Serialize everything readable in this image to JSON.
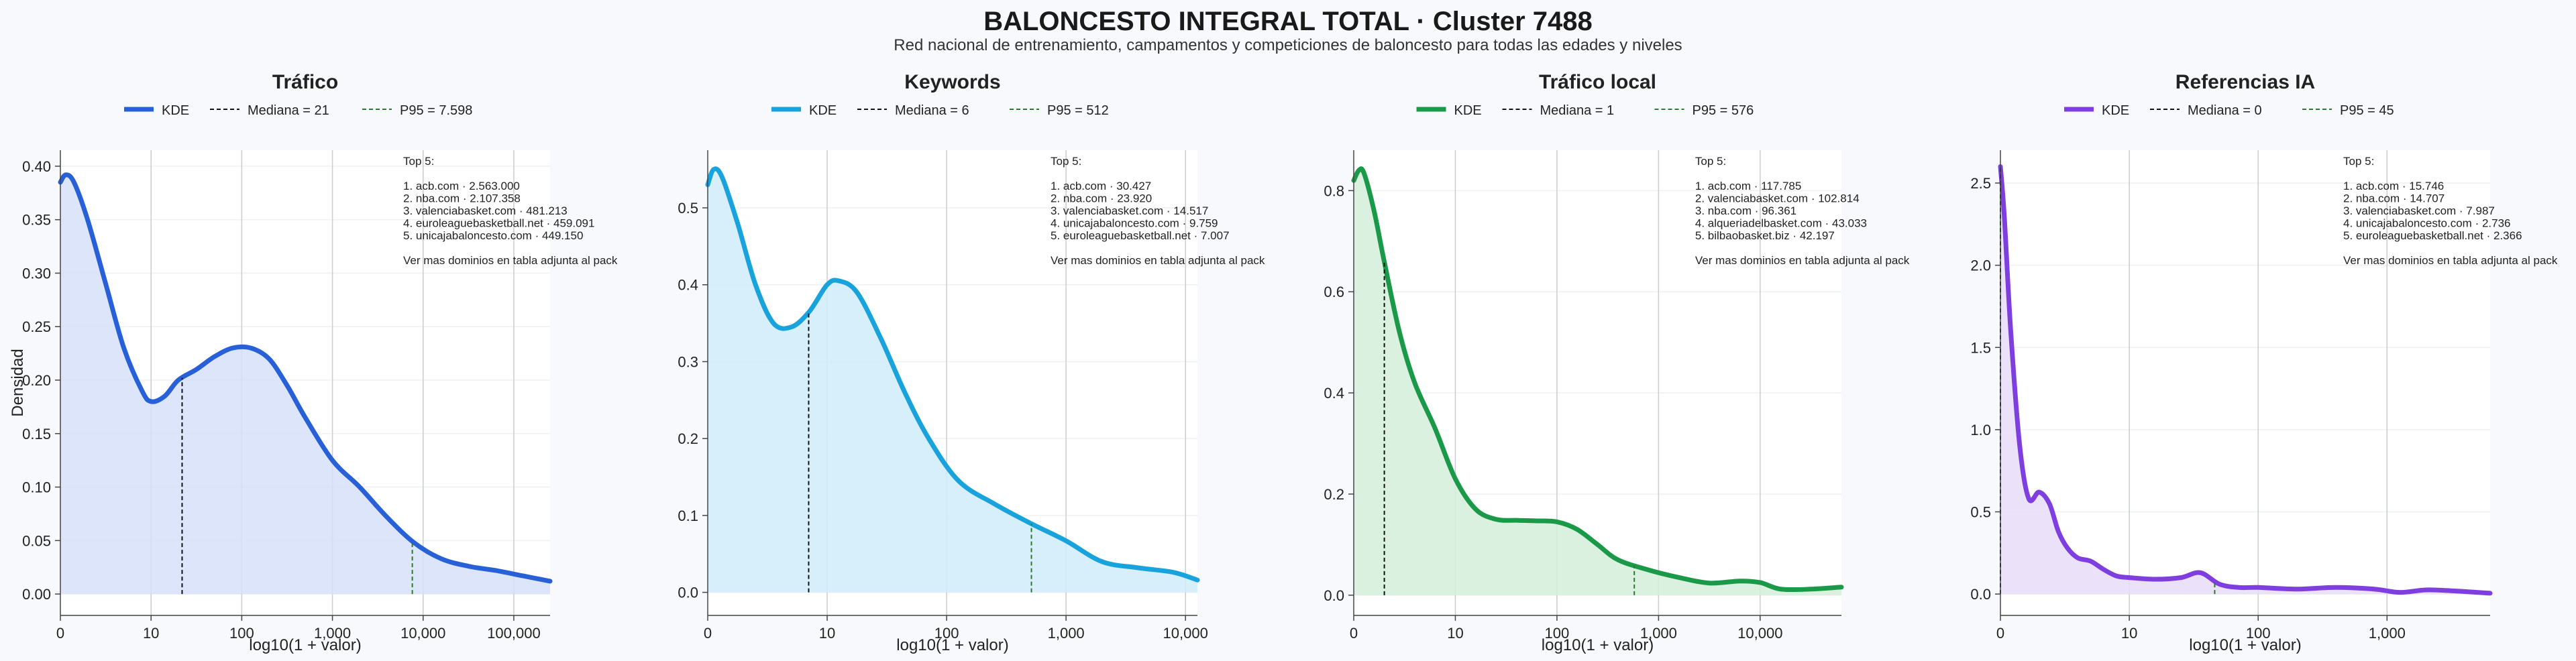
{
  "header": {
    "title": "BALONCESTO INTEGRAL TOTAL · Cluster 7488",
    "subtitle": "Red nacional de entrenamiento, campamentos y competiciones de baloncesto para todas las edades y niveles"
  },
  "chart_data": [
    {
      "type": "area",
      "title": "Tráfico",
      "color": "#2860d8",
      "fill": "#d6e0f8",
      "xlabel": "log10(1 + valor)",
      "ylabel": "Densidad",
      "xscale": "log10(1+x)",
      "xlim": [
        0,
        5.4
      ],
      "ylim": [
        -0.02,
        0.415
      ],
      "xticks": [
        0,
        1,
        2,
        3,
        4,
        5
      ],
      "xtick_labels": [
        "0",
        "10",
        "100",
        "1,000",
        "10,000",
        "100,000"
      ],
      "yticks": [
        0,
        0.05,
        0.1,
        0.15,
        0.2,
        0.25,
        0.3,
        0.35,
        0.4
      ],
      "ytick_labels": [
        "0.00",
        "0.05",
        "0.10",
        "0.15",
        "0.20",
        "0.25",
        "0.30",
        "0.35",
        "0.40"
      ],
      "kde": {
        "x": [
          0,
          0.06,
          0.15,
          0.3,
          0.5,
          0.7,
          0.9,
          1.0,
          1.15,
          1.3,
          1.5,
          1.7,
          1.9,
          2.1,
          2.3,
          2.5,
          2.7,
          3.0,
          3.3,
          3.6,
          3.9,
          4.2,
          4.5,
          4.8,
          5.1,
          5.4
        ],
        "y": [
          0.385,
          0.392,
          0.385,
          0.35,
          0.29,
          0.23,
          0.19,
          0.18,
          0.185,
          0.2,
          0.21,
          0.222,
          0.23,
          0.23,
          0.22,
          0.195,
          0.165,
          0.125,
          0.1,
          0.072,
          0.048,
          0.033,
          0.026,
          0.022,
          0.017,
          0.012
        ]
      },
      "legend": [
        "KDE",
        "Mediana = 21",
        "P95 = 7.598"
      ],
      "median": 21,
      "p95": 7598,
      "top5": [
        "Top 5:",
        "",
        "1. acb.com · 2.563.000",
        "2. nba.com · 2.107.358",
        "3. valenciabasket.com · 481.213",
        "4. euroleaguebasketball.net · 459.091",
        "5. unicajabaloncesto.com · 449.150",
        "",
        "Ver mas dominios en tabla adjunta al pack"
      ]
    },
    {
      "type": "area",
      "title": "Keywords",
      "color": "#18a3dd",
      "fill": "#d0ecfa",
      "xlabel": "log10(1 + valor)",
      "ylabel": "",
      "xscale": "log10(1+x)",
      "xlim": [
        0,
        4.1
      ],
      "ylim": [
        -0.03,
        0.575
      ],
      "xticks": [
        0,
        1,
        2,
        3,
        4
      ],
      "xtick_labels": [
        "0",
        "10",
        "100",
        "1,000",
        "10,000"
      ],
      "yticks": [
        0,
        0.1,
        0.2,
        0.3,
        0.4,
        0.5
      ],
      "ytick_labels": [
        "0.0",
        "0.1",
        "0.2",
        "0.3",
        "0.4",
        "0.5"
      ],
      "kde": {
        "x": [
          0,
          0.05,
          0.12,
          0.25,
          0.4,
          0.55,
          0.7,
          0.85,
          1.0,
          1.1,
          1.25,
          1.45,
          1.65,
          1.85,
          2.1,
          2.4,
          2.7,
          3.0,
          3.3,
          3.6,
          3.9,
          4.1
        ],
        "y": [
          0.53,
          0.55,
          0.54,
          0.48,
          0.4,
          0.35,
          0.345,
          0.365,
          0.4,
          0.405,
          0.39,
          0.33,
          0.26,
          0.2,
          0.145,
          0.115,
          0.09,
          0.067,
          0.04,
          0.032,
          0.026,
          0.016
        ]
      },
      "legend": [
        "KDE",
        "Mediana = 6",
        "P95 = 512"
      ],
      "median": 6,
      "p95": 512,
      "top5": [
        "Top 5:",
        "",
        "1. acb.com · 30.427",
        "2. nba.com · 23.920",
        "3. valenciabasket.com · 14.517",
        "4. unicajabaloncesto.com · 9.759",
        "5. euroleaguebasketball.net · 7.007",
        "",
        "Ver mas dominios en tabla adjunta al pack"
      ]
    },
    {
      "type": "area",
      "title": "Tráfico local",
      "color": "#1a9a48",
      "fill": "#d3eeda",
      "xlabel": "log10(1 + valor)",
      "ylabel": "",
      "xscale": "log10(1+x)",
      "xlim": [
        0,
        4.8
      ],
      "ylim": [
        -0.04,
        0.88
      ],
      "xticks": [
        0,
        1,
        2,
        3,
        4
      ],
      "xtick_labels": [
        "0",
        "10",
        "100",
        "1,000",
        "10,000"
      ],
      "yticks": [
        0,
        0.2,
        0.4,
        0.6,
        0.8
      ],
      "ytick_labels": [
        "0.0",
        "0.2",
        "0.4",
        "0.6",
        "0.8"
      ],
      "kde": {
        "x": [
          0,
          0.05,
          0.1,
          0.2,
          0.3,
          0.45,
          0.6,
          0.8,
          1.0,
          1.2,
          1.4,
          1.6,
          1.8,
          2.0,
          2.2,
          2.4,
          2.6,
          2.9,
          3.2,
          3.5,
          3.8,
          4.0,
          4.2,
          4.5,
          4.8
        ],
        "y": [
          0.82,
          0.84,
          0.835,
          0.76,
          0.66,
          0.52,
          0.42,
          0.33,
          0.23,
          0.17,
          0.15,
          0.148,
          0.147,
          0.145,
          0.13,
          0.1,
          0.07,
          0.05,
          0.035,
          0.024,
          0.028,
          0.025,
          0.012,
          0.012,
          0.016
        ]
      },
      "legend": [
        "KDE",
        "Mediana = 1",
        "P95 = 576"
      ],
      "median": 1,
      "p95": 576,
      "top5": [
        "Top 5:",
        "",
        "1. acb.com · 117.785",
        "2. valenciabasket.com · 102.814",
        "3. nba.com · 96.361",
        "4. alqueriadelbasket.com · 43.033",
        "5. bilbaobasket.biz · 42.197",
        "",
        "Ver mas dominios en tabla adjunta al pack"
      ]
    },
    {
      "type": "area",
      "title": "Referencias IA",
      "color": "#7e3ee0",
      "fill": "#e8dcf8",
      "xlabel": "log10(1 + valor)",
      "ylabel": "",
      "xscale": "log10(1+x)",
      "xlim": [
        0,
        3.8
      ],
      "ylim": [
        -0.13,
        2.7
      ],
      "xticks": [
        0,
        1,
        2,
        3
      ],
      "xtick_labels": [
        "0",
        "10",
        "100",
        "1,000"
      ],
      "yticks": [
        0,
        0.5,
        1.0,
        1.5,
        2.0,
        2.5
      ],
      "ytick_labels": [
        "0.0",
        "0.5",
        "1.0",
        "1.5",
        "2.0",
        "2.5"
      ],
      "kde": {
        "x": [
          0,
          0.03,
          0.08,
          0.15,
          0.22,
          0.3,
          0.38,
          0.45,
          0.52,
          0.6,
          0.7,
          0.8,
          0.9,
          1.0,
          1.2,
          1.4,
          1.55,
          1.7,
          1.85,
          2.0,
          2.3,
          2.6,
          2.9,
          3.1,
          3.3,
          3.5,
          3.8
        ],
        "y": [
          2.6,
          2.3,
          1.6,
          0.9,
          0.58,
          0.62,
          0.55,
          0.38,
          0.28,
          0.22,
          0.2,
          0.15,
          0.11,
          0.1,
          0.09,
          0.1,
          0.13,
          0.06,
          0.04,
          0.04,
          0.03,
          0.04,
          0.03,
          0.01,
          0.025,
          0.02,
          0.005
        ]
      },
      "legend": [
        "KDE",
        "Mediana = 0",
        "P95 = 45"
      ],
      "median": 0,
      "p95": 45,
      "top5": [
        "Top 5:",
        "",
        "1. acb.com · 15.746",
        "2. nba.com · 14.707",
        "3. valenciabasket.com · 7.987",
        "4. unicajabaloncesto.com · 2.736",
        "5. euroleaguebasketball.net · 2.366",
        "",
        "Ver mas dominios en tabla adjunta al pack"
      ]
    }
  ]
}
